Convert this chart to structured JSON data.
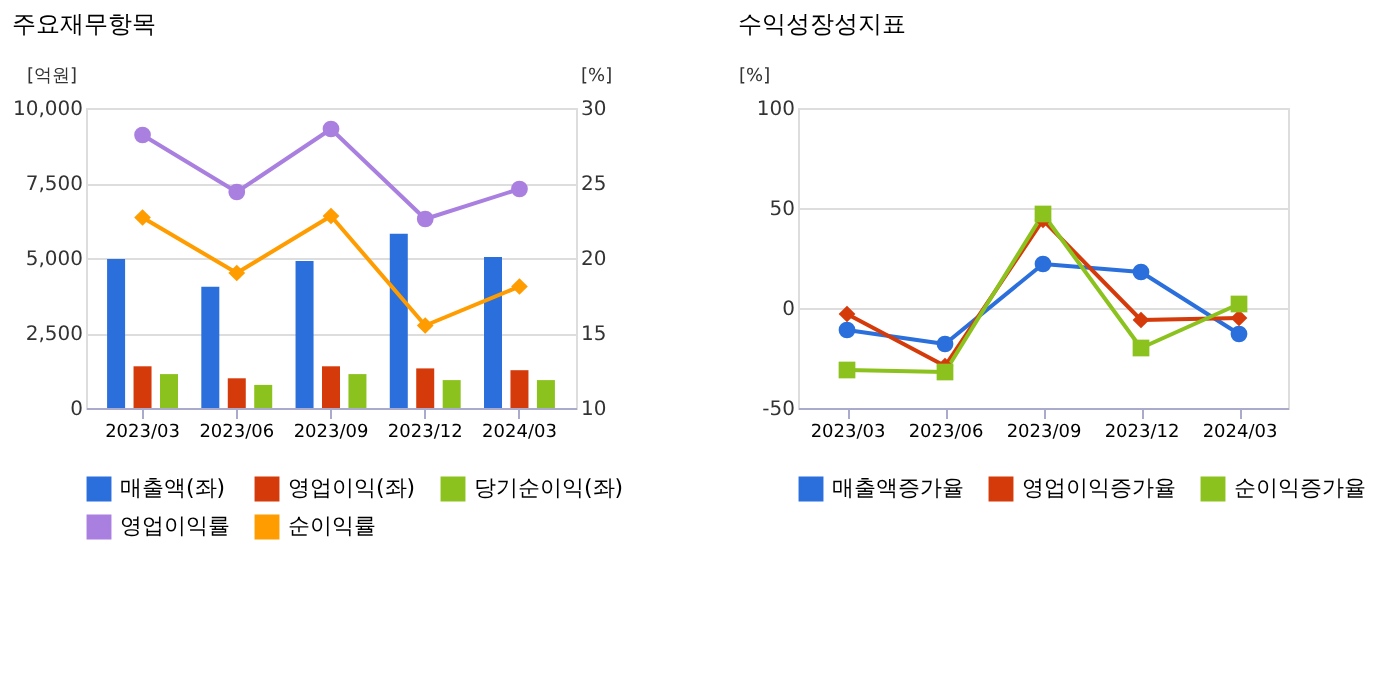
{
  "chart_data": [
    {
      "type": "bar",
      "title": "주요재무항목",
      "categories": [
        "2023/03",
        "2023/06",
        "2023/09",
        "2023/12",
        "2024/03"
      ],
      "ylabel": "[억원]",
      "y2label": "[%]",
      "ylim": [
        0,
        10000
      ],
      "yticks": [
        0,
        {
          "value": 2500,
          "label": "2,500"
        },
        {
          "value": 5000,
          "label": "5,000"
        },
        {
          "value": 7500,
          "label": "7,500"
        },
        {
          "value": 10000,
          "label": "10,000"
        }
      ],
      "y2lim": [
        10,
        30
      ],
      "y2ticks": [
        10,
        15,
        20,
        25,
        30
      ],
      "grid": "y",
      "legend": "bottom",
      "series": [
        {
          "name": "매출액(좌)",
          "color": "#2a6fdb",
          "values": [
            4970,
            4040,
            4900,
            5810,
            5030
          ]
        },
        {
          "name": "영업이익(좌)",
          "color": "#d43a0a",
          "values": [
            1390,
            990,
            1390,
            1320,
            1260
          ]
        },
        {
          "name": "당기순이익(좌)",
          "color": "#8cc21e",
          "values": [
            1130,
            770,
            1130,
            930,
            930
          ]
        },
        {
          "name": "영업이익률",
          "type": "line",
          "axis": "y2",
          "marker": "circle",
          "color": "#a97fe0",
          "values": [
            28.2,
            24.4,
            28.6,
            22.6,
            24.6
          ]
        },
        {
          "name": "순이익률",
          "type": "line",
          "axis": "y2",
          "marker": "diamond",
          "color": "#ff9c00",
          "values": [
            22.7,
            19.0,
            22.8,
            15.5,
            18.1
          ]
        }
      ]
    },
    {
      "type": "line",
      "title": "수익성장성지표",
      "categories": [
        "2023/03",
        "2023/06",
        "2023/09",
        "2023/12",
        "2024/03"
      ],
      "ylabel": "[%]",
      "ylim": [
        -50,
        100
      ],
      "yticks": [
        -50,
        0,
        50,
        100
      ],
      "grid": "y",
      "legend": "bottom",
      "series": [
        {
          "name": "매출액증가율",
          "marker": "circle",
          "color": "#2a6fdb",
          "values": [
            -11,
            -18,
            22,
            18,
            -13
          ]
        },
        {
          "name": "영업이익증가율",
          "marker": "diamond",
          "color": "#d43a0a",
          "values": [
            -3,
            -29,
            44,
            -6,
            -5
          ]
        },
        {
          "name": "순이익증가율",
          "marker": "square",
          "color": "#8cc21e",
          "values": [
            -31,
            -32,
            47,
            -20,
            2
          ]
        }
      ]
    }
  ]
}
